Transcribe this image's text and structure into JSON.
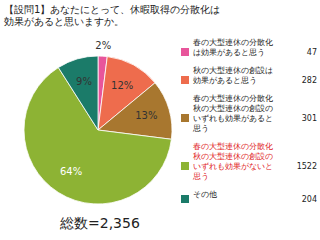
{
  "chart_data": {
    "type": "pie",
    "title": [
      "【設問1】あなたにとって、休暇取得の分散化は",
      "効果があると思いますか。"
    ],
    "categories": [
      "春の大型連休の分散化は効果があると思う",
      "秋の大型連休の創設は効果があると思う",
      "春の大型連休の分散化秋の大型連休の創設のいずれも効果があると思う",
      "春の大型連休の分散化秋の大型連休の創設のいずれも効果がないと思う",
      "その他"
    ],
    "values": [
      2,
      12,
      13,
      64,
      9
    ],
    "value_labels": [
      "2%",
      "12%",
      "13%",
      "64%",
      "9%"
    ],
    "counts": [
      47,
      282,
      301,
      1522,
      204
    ],
    "total": {
      "value": 2356,
      "label": "総数=2,356"
    },
    "colors": [
      "#e8559b",
      "#ee6c4d",
      "#a8772f",
      "#8db334",
      "#1b7b69"
    ],
    "data_labels": true,
    "legend": "right"
  }
}
